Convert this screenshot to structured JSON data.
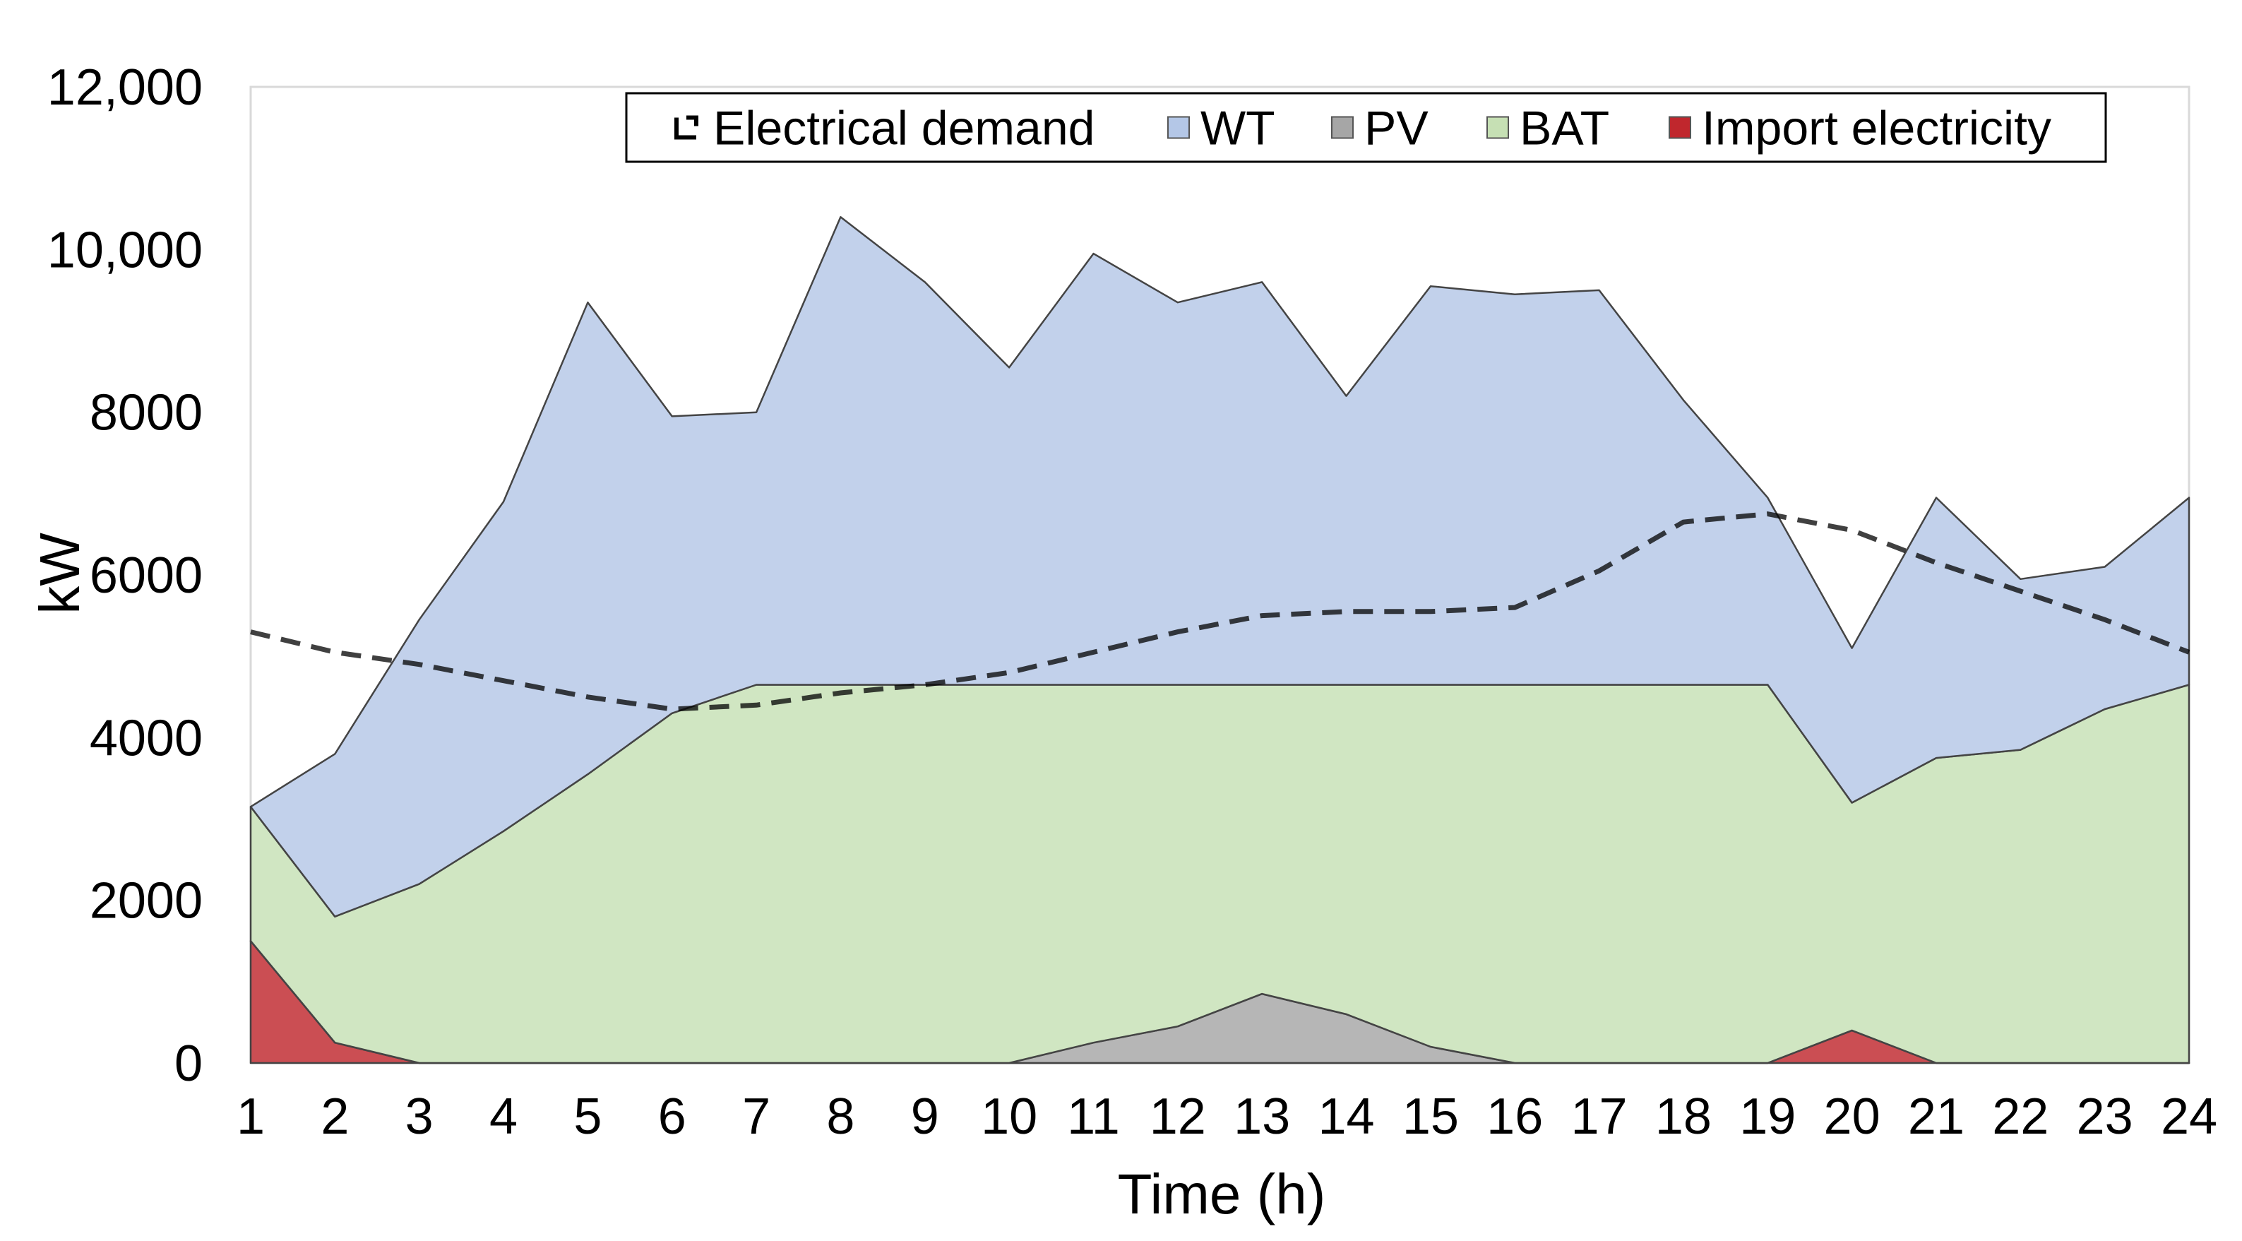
{
  "chart_data": {
    "type": "area",
    "title": "",
    "xlabel": "Time (h)",
    "ylabel": "kW",
    "x": [
      1,
      2,
      3,
      4,
      5,
      6,
      7,
      8,
      9,
      10,
      11,
      12,
      13,
      14,
      15,
      16,
      17,
      18,
      19,
      20,
      21,
      22,
      23,
      24
    ],
    "xtick_labels": [
      "1",
      "2",
      "3",
      "4",
      "5",
      "6",
      "7",
      "8",
      "9",
      "10",
      "11",
      "12",
      "13",
      "14",
      "15",
      "16",
      "17",
      "18",
      "19",
      "20",
      "21",
      "22",
      "23",
      "24"
    ],
    "ylim": [
      0,
      12000
    ],
    "yticks": [
      0,
      2000,
      4000,
      6000,
      8000,
      10000,
      12000
    ],
    "ytick_labels": [
      "0",
      "2000",
      "4000",
      "6000",
      "8000",
      "10,000",
      "12,000"
    ],
    "grid": false,
    "legend_position": "top",
    "stacked_series": [
      {
        "name": "Import electricity",
        "color": "#c0272d",
        "values": [
          1500,
          250,
          0,
          0,
          0,
          0,
          0,
          0,
          0,
          0,
          0,
          0,
          0,
          0,
          0,
          0,
          0,
          0,
          0,
          400,
          0,
          0,
          0,
          0
        ]
      },
      {
        "name": "PV",
        "color": "#a6a6a6",
        "values": [
          0,
          0,
          0,
          0,
          0,
          0,
          0,
          0,
          0,
          0,
          250,
          450,
          850,
          600,
          200,
          0,
          0,
          0,
          0,
          0,
          0,
          0,
          0,
          0
        ]
      },
      {
        "name": "BAT",
        "color": "#c6e0b4",
        "values": [
          1650,
          1550,
          2200,
          2850,
          3550,
          4300,
          4650,
          4650,
          4650,
          4650,
          4400,
          4200,
          3800,
          4050,
          4450,
          4650,
          4650,
          4650,
          4650,
          2800,
          3750,
          3850,
          4350,
          4650
        ]
      },
      {
        "name": "WT",
        "color": "#b4c7e7",
        "values": [
          0,
          2000,
          3250,
          4050,
          5800,
          3650,
          3350,
          5750,
          4950,
          3900,
          5300,
          4700,
          4950,
          3550,
          4900,
          4800,
          4850,
          3500,
          2300,
          1900,
          3200,
          2100,
          1750,
          2300
        ]
      }
    ],
    "line_series": {
      "name": "Electrical demand",
      "style": "dashed",
      "color": "#000000",
      "values": [
        5300,
        5050,
        4900,
        4700,
        4500,
        4350,
        4400,
        4550,
        4650,
        4800,
        5050,
        5300,
        5500,
        5550,
        5550,
        5600,
        6050,
        6650,
        6750,
        6550,
        6150,
        5800,
        5450,
        5050
      ]
    },
    "legend": [
      {
        "name": "Electrical demand",
        "symbol": "dashed-line"
      },
      {
        "name": "WT",
        "symbol": "square",
        "color": "#b4c7e7"
      },
      {
        "name": "PV",
        "symbol": "square",
        "color": "#a6a6a6"
      },
      {
        "name": "BAT",
        "symbol": "square",
        "color": "#c6e0b4"
      },
      {
        "name": "Import electricity",
        "symbol": "square",
        "color": "#c0272d"
      }
    ]
  }
}
